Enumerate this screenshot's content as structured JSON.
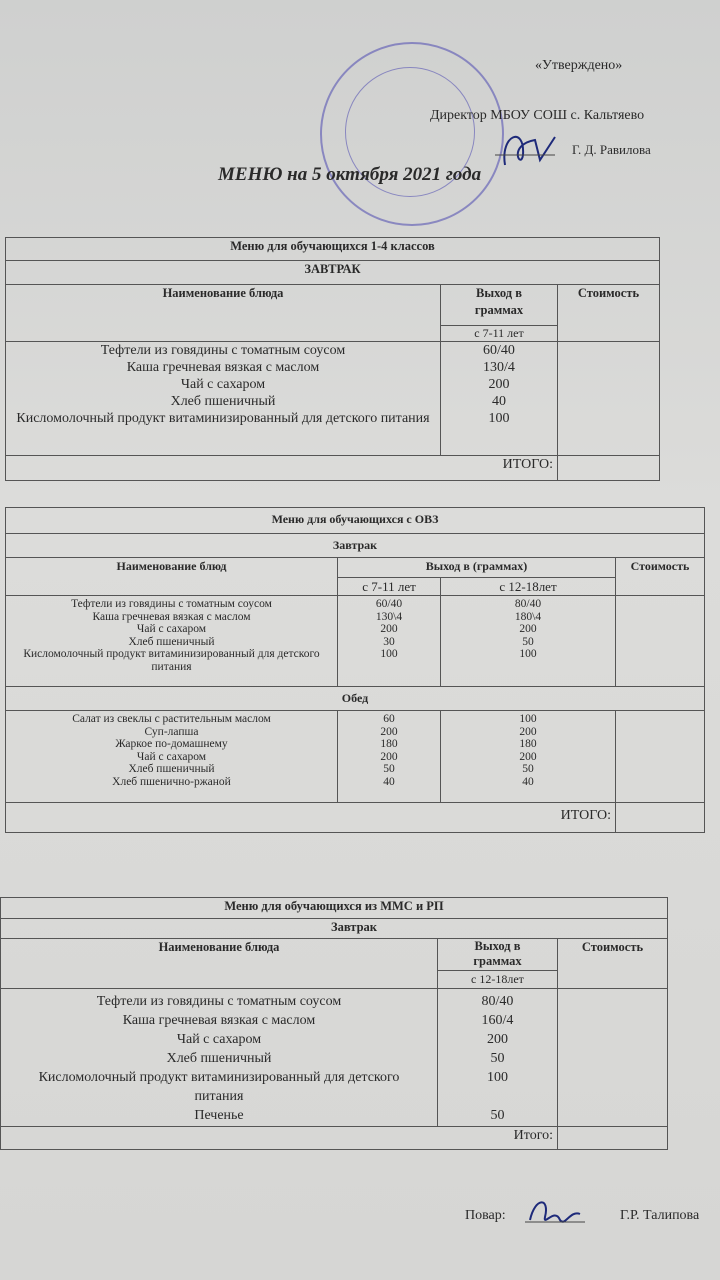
{
  "header": {
    "approved": "«Утверждено»",
    "director": "Директор МБОУ СОШ с. Кальтяево",
    "director_name": "Г. Д. Равилова",
    "title": "МЕНЮ на 5 октября 2021 года"
  },
  "table1": {
    "title": "Меню для обучающихся 1-4 классов",
    "meal": "ЗАВТРАК",
    "col_name": "Наименование блюда",
    "col_yield": "Выход в граммах",
    "col_cost": "Стоимость",
    "age": "с 7-11 лет",
    "items": [
      {
        "name": "Тефтели из говядины с томатным соусом",
        "y": "60/40"
      },
      {
        "name": "Каша гречневая вязкая с маслом",
        "y": "130/4"
      },
      {
        "name": "Чай с сахаром",
        "y": "200"
      },
      {
        "name": "Хлеб пшеничный",
        "y": "40"
      },
      {
        "name": "Кисломолочный продукт витаминизированный для детского питания",
        "y": "100"
      }
    ],
    "total": "ИТОГО:"
  },
  "table2": {
    "title": "Меню для обучающихся с ОВЗ",
    "meal1": "Завтрак",
    "col_name": "Наименование блюд",
    "col_yield": "Выход в (граммах)",
    "col_cost": "Стоимость",
    "age1": "с 7-11 лет",
    "age2": "с 12-18лет",
    "breakfast": [
      {
        "name": "Тефтели из говядины с томатным соусом",
        "a": "60/40",
        "b": "80/40"
      },
      {
        "name": "Каша гречневая вязкая с маслом",
        "a": "130\\4",
        "b": "180\\4"
      },
      {
        "name": "Чай с сахаром",
        "a": "200",
        "b": "200"
      },
      {
        "name": "Хлеб пшеничный",
        "a": "30",
        "b": "50"
      },
      {
        "name": "Кисломолочный продукт витаминизированный для детского питания",
        "a": "100",
        "b": "100"
      }
    ],
    "meal2": "Обед",
    "lunch": [
      {
        "name": "Салат из свеклы с растительным маслом",
        "a": "60",
        "b": "100"
      },
      {
        "name": "Суп-лапша",
        "a": "200",
        "b": "200"
      },
      {
        "name": "Жаркое по-домашнему",
        "a": "180",
        "b": "180"
      },
      {
        "name": "Чай с сахаром",
        "a": "200",
        "b": "200"
      },
      {
        "name": "Хлеб пшеничный",
        "a": "50",
        "b": "50"
      },
      {
        "name": "Хлеб пшенично-ржаной",
        "a": "40",
        "b": "40"
      }
    ],
    "total": "ИТОГО:"
  },
  "table3": {
    "title": "Меню для обучающихся из ММС и РП",
    "meal": "Завтрак",
    "col_name": "Наименование блюда",
    "col_yield": "Выход в граммах",
    "col_cost": "Стоимость",
    "age": "с 12-18лет",
    "items": [
      {
        "name": "Тефтели из говядины с томатным соусом",
        "y": "80/40"
      },
      {
        "name": "Каша гречневая вязкая с маслом",
        "y": "160/4"
      },
      {
        "name": "Чай с сахаром",
        "y": "200"
      },
      {
        "name": "Хлеб пшеничный",
        "y": "50"
      },
      {
        "name": "Кисломолочный продукт витаминизированный для детского питания",
        "y": "100"
      },
      {
        "name": "Печенье",
        "y": "50"
      }
    ],
    "total": "Итого:"
  },
  "footer": {
    "cook_label": "Повар:",
    "cook_name": "Г.Р. Талипова"
  },
  "colors": {
    "stamp": "#6a66b8",
    "ink": "#1e2a7a"
  }
}
